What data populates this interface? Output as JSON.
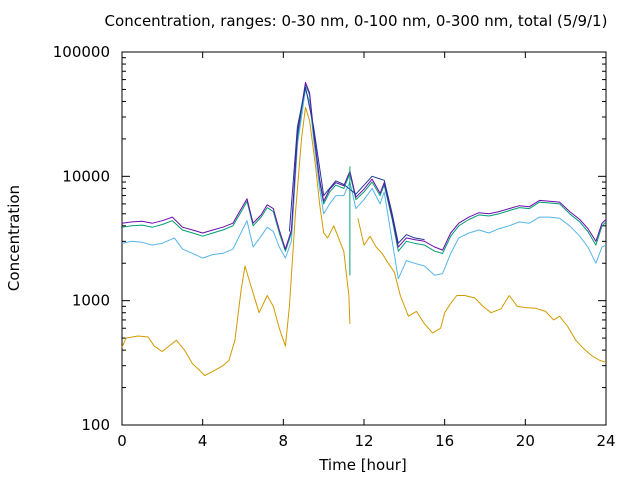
{
  "chart_data": {
    "type": "line",
    "title": "Concentration, ranges: 0-30 nm, 0-100 nm, 0-300 nm, total (5/9/1)",
    "xlabel": "Time [hour]",
    "ylabel": "Concentration",
    "xlim": [
      0,
      24
    ],
    "ylim": [
      100,
      100000
    ],
    "yscale": "log",
    "x_ticks": [
      "0",
      "4",
      "8",
      "12",
      "16",
      "20",
      "24"
    ],
    "y_ticks": [
      "100",
      "1000",
      "10000",
      "100000"
    ],
    "grid": false,
    "series": [
      {
        "color": "#d29a00",
        "width": 1.0,
        "points": [
          [
            0,
            420
          ],
          [
            0.2,
            500
          ],
          [
            0.8,
            520
          ],
          [
            1.3,
            510
          ],
          [
            1.6,
            430
          ],
          [
            2.0,
            390
          ],
          [
            2.4,
            440
          ],
          [
            2.7,
            480
          ],
          [
            3.1,
            400
          ],
          [
            3.5,
            310
          ],
          [
            3.8,
            280
          ],
          [
            4.1,
            250
          ],
          [
            4.5,
            270
          ],
          [
            5.0,
            300
          ],
          [
            5.3,
            330
          ],
          [
            5.6,
            480
          ],
          [
            5.9,
            1200
          ],
          [
            6.1,
            1900
          ],
          [
            6.4,
            1300
          ],
          [
            6.8,
            800
          ],
          [
            7.2,
            1100
          ],
          [
            7.5,
            900
          ],
          [
            7.8,
            600
          ],
          [
            8.1,
            430
          ],
          [
            8.3,
            900
          ],
          [
            8.6,
            5000
          ],
          [
            8.9,
            20000
          ],
          [
            9.1,
            36000
          ],
          [
            9.3,
            28000
          ],
          [
            9.6,
            12000
          ],
          [
            9.8,
            6000
          ],
          [
            10.0,
            3500
          ],
          [
            10.2,
            3200
          ],
          [
            10.5,
            4000
          ],
          [
            10.8,
            3000
          ],
          [
            11.0,
            2500
          ],
          [
            11.15,
            1500
          ],
          [
            11.25,
            1100
          ],
          [
            11.3,
            650
          ]
        ]
      },
      {
        "color": "#d29a00",
        "width": 1.0,
        "points": [
          [
            11.7,
            4600
          ],
          [
            12.0,
            2800
          ],
          [
            12.3,
            3300
          ],
          [
            12.6,
            2700
          ],
          [
            12.9,
            2400
          ],
          [
            13.2,
            2000
          ],
          [
            13.5,
            1700
          ],
          [
            13.8,
            1100
          ],
          [
            14.2,
            750
          ],
          [
            14.6,
            820
          ],
          [
            15.0,
            650
          ],
          [
            15.4,
            550
          ],
          [
            15.8,
            600
          ],
          [
            16.0,
            800
          ],
          [
            16.3,
            950
          ],
          [
            16.6,
            1100
          ],
          [
            17.0,
            1100
          ],
          [
            17.5,
            1050
          ],
          [
            17.9,
            900
          ],
          [
            18.3,
            800
          ],
          [
            18.8,
            860
          ],
          [
            19.2,
            1100
          ],
          [
            19.6,
            900
          ],
          [
            20.0,
            880
          ],
          [
            20.5,
            870
          ],
          [
            21.0,
            820
          ],
          [
            21.4,
            700
          ],
          [
            21.7,
            750
          ],
          [
            22.1,
            620
          ],
          [
            22.5,
            480
          ],
          [
            22.9,
            410
          ],
          [
            23.3,
            360
          ],
          [
            23.7,
            330
          ],
          [
            24.0,
            320
          ]
        ]
      },
      {
        "color": "#56b4e9",
        "width": 1.0,
        "points": [
          [
            0,
            2900
          ],
          [
            0.5,
            3000
          ],
          [
            1.0,
            2950
          ],
          [
            1.5,
            2800
          ],
          [
            2.0,
            2900
          ],
          [
            2.6,
            3200
          ],
          [
            3.0,
            2600
          ],
          [
            3.5,
            2400
          ],
          [
            4.0,
            2200
          ],
          [
            4.5,
            2350
          ],
          [
            5.0,
            2400
          ],
          [
            5.5,
            2600
          ],
          [
            6.0,
            3800
          ],
          [
            6.2,
            4400
          ],
          [
            6.5,
            2700
          ],
          [
            6.9,
            3300
          ],
          [
            7.2,
            3900
          ],
          [
            7.5,
            3600
          ],
          [
            7.8,
            2700
          ],
          [
            8.1,
            2200
          ],
          [
            8.4,
            3000
          ],
          [
            8.7,
            18000
          ],
          [
            8.9,
            30000
          ],
          [
            9.1,
            50000
          ],
          [
            9.3,
            40000
          ],
          [
            9.5,
            20000
          ],
          [
            9.8,
            8000
          ],
          [
            10.0,
            5000
          ],
          [
            10.3,
            6000
          ],
          [
            10.6,
            7000
          ],
          [
            11.0,
            7000
          ],
          [
            11.3,
            9000
          ],
          [
            11.6,
            5500
          ],
          [
            12.0,
            6500
          ],
          [
            12.4,
            8000
          ],
          [
            12.8,
            6000
          ],
          [
            13.0,
            7500
          ],
          [
            13.4,
            3000
          ],
          [
            13.7,
            1500
          ],
          [
            14.1,
            2100
          ],
          [
            14.5,
            2000
          ],
          [
            15.0,
            1900
          ],
          [
            15.5,
            1600
          ],
          [
            15.9,
            1650
          ],
          [
            16.3,
            2400
          ],
          [
            16.7,
            3200
          ],
          [
            17.2,
            3500
          ],
          [
            17.7,
            3700
          ],
          [
            18.2,
            3500
          ],
          [
            18.7,
            3800
          ],
          [
            19.2,
            4000
          ],
          [
            19.7,
            4300
          ],
          [
            20.2,
            4200
          ],
          [
            20.7,
            4700
          ],
          [
            21.2,
            4700
          ],
          [
            21.7,
            4600
          ],
          [
            22.2,
            4000
          ],
          [
            22.7,
            3300
          ],
          [
            23.1,
            2700
          ],
          [
            23.5,
            2000
          ],
          [
            23.8,
            2700
          ],
          [
            24.0,
            2800
          ]
        ]
      },
      {
        "color": "#009e73",
        "width": 1.0,
        "points": [
          [
            0,
            3900
          ],
          [
            0.5,
            4000
          ],
          [
            1.0,
            4050
          ],
          [
            1.5,
            3900
          ],
          [
            2.0,
            4100
          ],
          [
            2.5,
            4400
          ],
          [
            3.0,
            3700
          ],
          [
            3.5,
            3500
          ],
          [
            4.0,
            3300
          ],
          [
            4.5,
            3500
          ],
          [
            5.0,
            3700
          ],
          [
            5.5,
            4000
          ],
          [
            6.0,
            5500
          ],
          [
            6.2,
            6300
          ],
          [
            6.5,
            4000
          ],
          [
            6.9,
            4700
          ],
          [
            7.2,
            5600
          ],
          [
            7.5,
            5200
          ],
          [
            7.8,
            3500
          ],
          [
            8.1,
            2500
          ],
          [
            8.4,
            3500
          ],
          [
            8.7,
            20000
          ],
          [
            8.9,
            34000
          ],
          [
            9.1,
            55000
          ],
          [
            9.3,
            45000
          ],
          [
            9.5,
            22000
          ],
          [
            9.8,
            9000
          ],
          [
            10.0,
            6000
          ],
          [
            10.3,
            7500
          ],
          [
            10.6,
            8500
          ],
          [
            11.0,
            8000
          ],
          [
            11.3,
            10500
          ],
          [
            11.6,
            6500
          ],
          [
            12.0,
            7500
          ],
          [
            12.4,
            9000
          ],
          [
            12.8,
            7000
          ],
          [
            13.0,
            8500
          ],
          [
            13.4,
            4500
          ],
          [
            13.7,
            2500
          ],
          [
            14.1,
            3000
          ],
          [
            14.5,
            2900
          ],
          [
            15.0,
            2800
          ],
          [
            15.5,
            2500
          ],
          [
            15.9,
            2400
          ],
          [
            16.3,
            3300
          ],
          [
            16.7,
            4000
          ],
          [
            17.2,
            4500
          ],
          [
            17.7,
            4900
          ],
          [
            18.2,
            4800
          ],
          [
            18.7,
            5000
          ],
          [
            19.2,
            5300
          ],
          [
            19.7,
            5600
          ],
          [
            20.2,
            5500
          ],
          [
            20.7,
            6200
          ],
          [
            21.2,
            6100
          ],
          [
            21.7,
            6000
          ],
          [
            22.2,
            5000
          ],
          [
            22.7,
            4300
          ],
          [
            23.1,
            3600
          ],
          [
            23.5,
            2800
          ],
          [
            23.8,
            4000
          ],
          [
            24.0,
            4300
          ]
        ]
      },
      {
        "color": "#6a0dad",
        "width": 1.0,
        "points": [
          [
            0,
            4200
          ],
          [
            0.5,
            4300
          ],
          [
            1.0,
            4350
          ],
          [
            1.5,
            4200
          ],
          [
            2.0,
            4400
          ],
          [
            2.5,
            4700
          ],
          [
            3.0,
            3900
          ],
          [
            3.5,
            3700
          ],
          [
            4.0,
            3500
          ],
          [
            4.5,
            3700
          ],
          [
            5.0,
            3900
          ],
          [
            5.5,
            4200
          ],
          [
            6.0,
            5800
          ],
          [
            6.2,
            6600
          ],
          [
            6.5,
            4200
          ],
          [
            6.9,
            4900
          ],
          [
            7.2,
            5900
          ],
          [
            7.5,
            5500
          ],
          [
            7.8,
            3700
          ],
          [
            8.1,
            2600
          ],
          [
            8.4,
            3700
          ],
          [
            8.7,
            22000
          ],
          [
            8.9,
            36000
          ],
          [
            9.1,
            57000
          ],
          [
            9.3,
            47000
          ],
          [
            9.5,
            23000
          ],
          [
            9.8,
            9500
          ],
          [
            10.0,
            6300
          ],
          [
            10.3,
            7900
          ],
          [
            10.6,
            8900
          ],
          [
            11.0,
            8400
          ],
          [
            11.3,
            11000
          ],
          [
            11.6,
            6800
          ],
          [
            12.0,
            7900
          ],
          [
            12.4,
            9500
          ],
          [
            12.8,
            7300
          ],
          [
            13.0,
            8900
          ],
          [
            13.4,
            4700
          ],
          [
            13.7,
            2700
          ],
          [
            14.1,
            3200
          ],
          [
            14.5,
            3100
          ],
          [
            15.0,
            3000
          ],
          [
            15.5,
            2700
          ],
          [
            15.9,
            2550
          ],
          [
            16.3,
            3500
          ],
          [
            16.7,
            4200
          ],
          [
            17.2,
            4700
          ],
          [
            17.7,
            5100
          ],
          [
            18.2,
            5000
          ],
          [
            18.7,
            5200
          ],
          [
            19.2,
            5500
          ],
          [
            19.7,
            5800
          ],
          [
            20.2,
            5700
          ],
          [
            20.7,
            6400
          ],
          [
            21.2,
            6300
          ],
          [
            21.7,
            6200
          ],
          [
            22.2,
            5200
          ],
          [
            22.7,
            4500
          ],
          [
            23.1,
            3800
          ],
          [
            23.5,
            3000
          ],
          [
            23.8,
            4200
          ],
          [
            24.0,
            4500
          ]
        ]
      },
      {
        "color": "#1f3a93",
        "width": 1.0,
        "points": [
          [
            8.3,
            3600
          ],
          [
            8.7,
            25000
          ],
          [
            9.1,
            52000
          ],
          [
            9.5,
            25000
          ],
          [
            10.0,
            7000
          ],
          [
            10.6,
            9200
          ],
          [
            11.0,
            8600
          ],
          [
            11.6,
            7200
          ],
          [
            12.4,
            10000
          ],
          [
            13.0,
            9300
          ],
          [
            13.4,
            5000
          ],
          [
            13.7,
            2900
          ],
          [
            14.1,
            3400
          ],
          [
            14.5,
            3200
          ],
          [
            15.0,
            3100
          ]
        ]
      }
    ],
    "vertical_segments": [
      {
        "color": "#009e73",
        "x": 11.3,
        "ylim": [
          1600,
          12000
        ]
      }
    ]
  }
}
